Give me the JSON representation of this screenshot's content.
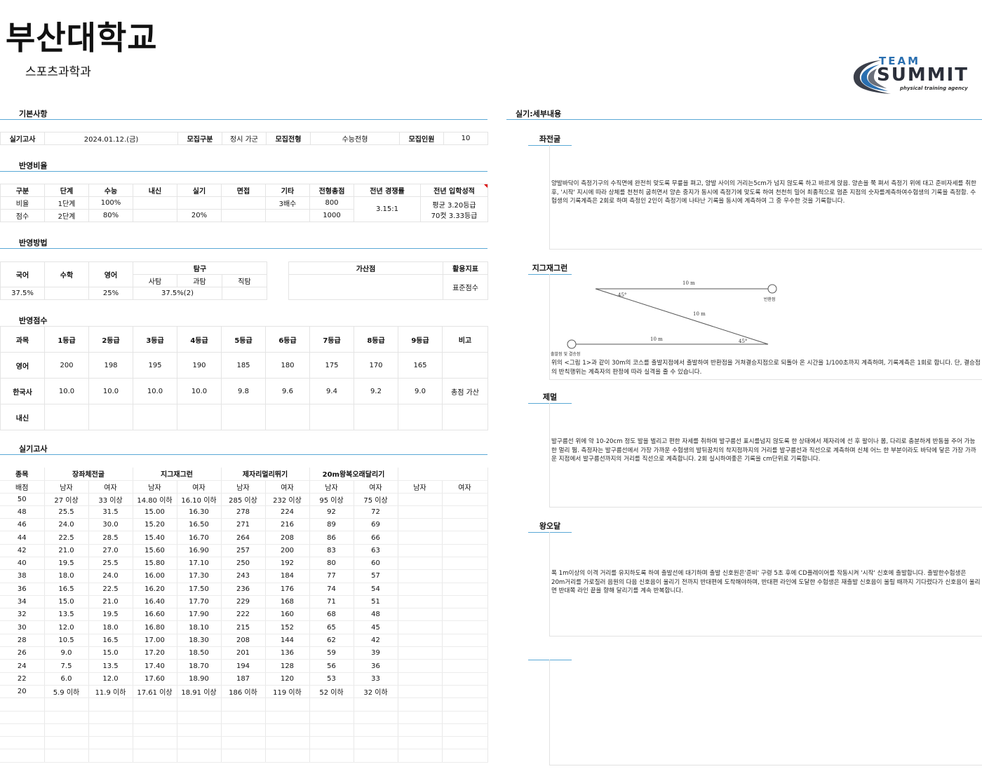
{
  "header": {
    "title": "부산대학교",
    "subtitle": "스포츠과학과"
  },
  "logo": {
    "top": "TEAM",
    "main": "SUMMIT",
    "tagline": "physical training agency"
  },
  "sections": {
    "basic": "기본사항",
    "ratio": "반영비율",
    "method": "반영방법",
    "score": "반영점수",
    "practical": "실기고사",
    "detail": "실기:세부내용"
  },
  "basic": {
    "exam_label": "실기고사",
    "exam_date": "2024.01.12.(금)",
    "type_label": "모집구분",
    "type_value": "정시 가군",
    "track_label": "모집전형",
    "track_value": "수능전형",
    "count_label": "모집인원",
    "count_value": "10"
  },
  "ratio": {
    "headers": [
      "구분",
      "단계",
      "수능",
      "내신",
      "실기",
      "면접",
      "기타",
      "전형총점",
      "전년 경쟁률",
      "전년 입학성적"
    ],
    "row1": [
      "비율",
      "1단계",
      "100%",
      "",
      "",
      "",
      "3배수",
      "800"
    ],
    "row2": [
      "점수",
      "2단계",
      "80%",
      "",
      "20%",
      "",
      "",
      "1000"
    ],
    "competition": "3.15:1",
    "admission1": "평균 3.20등급",
    "admission2": "70컷 3.33등급"
  },
  "method": {
    "korean": "국어",
    "math": "수학",
    "english": "영어",
    "explore": "탐구",
    "social": "사탐",
    "science": "과탐",
    "vocational": "직탐",
    "bonus": "가산점",
    "indicator": "활용지표",
    "korean_val": "37.5%",
    "math_val": "",
    "english_val": "25%",
    "explore_val": "37.5%(2)",
    "bonus_val": "",
    "indicator_val": "표준점수"
  },
  "score": {
    "headers": [
      "과목",
      "1등급",
      "2등급",
      "3등급",
      "4등급",
      "5등급",
      "6등급",
      "7등급",
      "8등급",
      "9등급",
      "비고"
    ],
    "rows": [
      [
        "영어",
        "200",
        "198",
        "195",
        "190",
        "185",
        "180",
        "175",
        "170",
        "165",
        ""
      ],
      [
        "한국사",
        "10.0",
        "10.0",
        "10.0",
        "10.0",
        "9.8",
        "9.6",
        "9.4",
        "9.2",
        "9.0",
        "총점 가산"
      ],
      [
        "내신",
        "",
        "",
        "",
        "",
        "",
        "",
        "",
        "",
        "",
        ""
      ]
    ]
  },
  "practical": {
    "col_event": "종목",
    "col_score": "배점",
    "events": [
      "장좌체전굴",
      "지그재그런",
      "제자리멀리뛰기",
      "20m왕복오래달리기",
      ""
    ],
    "male": "남자",
    "female": "여자",
    "rows": [
      [
        "50",
        "27 이상",
        "33 이상",
        "14.80 이하",
        "16.10 이하",
        "285 이상",
        "232 이상",
        "95 이상",
        "75 이상",
        "",
        ""
      ],
      [
        "48",
        "25.5",
        "31.5",
        "15.00",
        "16.30",
        "278",
        "224",
        "92",
        "72",
        "",
        ""
      ],
      [
        "46",
        "24.0",
        "30.0",
        "15.20",
        "16.50",
        "271",
        "216",
        "89",
        "69",
        "",
        ""
      ],
      [
        "44",
        "22.5",
        "28.5",
        "15.40",
        "16.70",
        "264",
        "208",
        "86",
        "66",
        "",
        ""
      ],
      [
        "42",
        "21.0",
        "27.0",
        "15.60",
        "16.90",
        "257",
        "200",
        "83",
        "63",
        "",
        ""
      ],
      [
        "40",
        "19.5",
        "25.5",
        "15.80",
        "17.10",
        "250",
        "192",
        "80",
        "60",
        "",
        ""
      ],
      [
        "38",
        "18.0",
        "24.0",
        "16.00",
        "17.30",
        "243",
        "184",
        "77",
        "57",
        "",
        ""
      ],
      [
        "36",
        "16.5",
        "22.5",
        "16.20",
        "17.50",
        "236",
        "176",
        "74",
        "54",
        "",
        ""
      ],
      [
        "34",
        "15.0",
        "21.0",
        "16.40",
        "17.70",
        "229",
        "168",
        "71",
        "51",
        "",
        ""
      ],
      [
        "32",
        "13.5",
        "19.5",
        "16.60",
        "17.90",
        "222",
        "160",
        "68",
        "48",
        "",
        ""
      ],
      [
        "30",
        "12.0",
        "18.0",
        "16.80",
        "18.10",
        "215",
        "152",
        "65",
        "45",
        "",
        ""
      ],
      [
        "28",
        "10.5",
        "16.5",
        "17.00",
        "18.30",
        "208",
        "144",
        "62",
        "42",
        "",
        ""
      ],
      [
        "26",
        "9.0",
        "15.0",
        "17.20",
        "18.50",
        "201",
        "136",
        "59",
        "39",
        "",
        ""
      ],
      [
        "24",
        "7.5",
        "13.5",
        "17.40",
        "18.70",
        "194",
        "128",
        "56",
        "36",
        "",
        ""
      ],
      [
        "22",
        "6.0",
        "12.0",
        "17.60",
        "18.90",
        "187",
        "120",
        "53",
        "33",
        "",
        ""
      ],
      [
        "20",
        "5.9 이하",
        "11.9 이하",
        "17.61 이상",
        "18.91 이상",
        "186 이하",
        "119 이하",
        "52 이하",
        "32 이하",
        "",
        ""
      ]
    ]
  },
  "detail": {
    "item1": {
      "name": "좌전굴",
      "text": "양발바닥이 측정기구의 수직면에 완전히 맞도록 무릎을 펴고, 양발 사이의 거리는5cm가 넘지 않도록 하고 바르게 앉음. 양손을 쭉 펴서 측정기 위에 대고 준비자세를 취한 후, '시작' 지시에 따라 상체를 천천히 굽히면서 양손 중지가 동시에 측정기에 맞도록 하여 천천히 밀어 최종적으로 멈춘 지점의 숫자를계측하여수험생의 기록을 측정함. 수험생의 기록계측은 2회로 하며 측정인 2인이 측정기에 나타난 기록을 동시에 계측하여 그 중 우수한 것을 기록합니다."
    },
    "item2": {
      "name": "지그재그런",
      "text": "위의 <그림 1>과 같이 30m의 코스를 출발지점에서 출발하여 반환점을 거쳐결승지점으로 되돌아 온 시간을 1/100초까지 계측하며, 기록계측은 1회로 합니다. 단, 결승점의 반칙행위는 계측자의 판정에 따라 실격을 줄 수 있습니다.",
      "d1": "10 m",
      "d2": "10 m",
      "d3": "10 m",
      "a1": "45°",
      "a2": "45°",
      "turn": "반환점",
      "start": "출발점 및 결승점"
    },
    "item3": {
      "name": "제멀",
      "text": "발구름선 위에 약 10-20cm 정도 발을 벌리고 편한 자세를 취하며 발구름선 표시를넘지 않도록 한 상태에서 제자리에 선 후 팔이나 몸, 다리로 충분하게 반동을 주어 가능한 멀리 뜀. 측정자는 발구름선에서 가장 가까운 수험생의 발뒤꿈치의 착지점까지의 거리를 발구름선과 직선으로 계측하며 신체 어느 한 부분이라도 바닥에 닿은 가장 가까운 지점에서 발구름선까지의 거리를 직선으로 계측합니다. 2회 실시하여좋은 기록을 cm단위로 기록합니다."
    },
    "item4": {
      "name": "왕오달",
      "text": "폭 1m이상의 이격 거리를 유지하도록 하여 출발선에 대기하며 출발 신호원은'준비' 구령 5초 후에 CD플레이어를 작동시켜 '시작' 신호에 출발합니다. 출발한수험생은 20m거리를 가로질러 음원의 다음 신호음이 울리기 전까지 반대편에 도착해야하며, 반대편 라인에 도달한 수험생은 재출발 신호음이 울릴 때까지 기다렸다가 신호음이 울리면 반대쪽 라인 끝을 향해 달리기를 계속 반복합니다."
    }
  }
}
